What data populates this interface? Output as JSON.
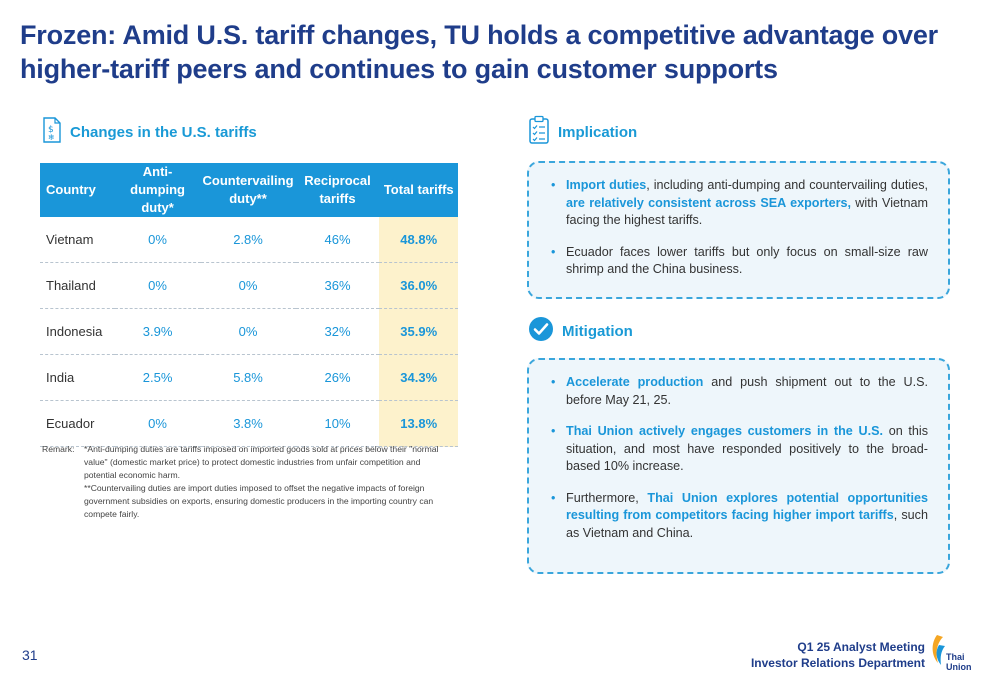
{
  "title": "Frozen: Amid U.S. tariff changes, TU holds a competitive advantage over higher-tariff peers and continues to gain customer supports",
  "left": {
    "heading": "Changes in the U.S. tariffs",
    "icon": "tariff-document-icon",
    "table": {
      "headers": [
        "Country",
        "Anti-dumping duty*",
        "Countervailing duty**",
        "Reciprocal tariffs",
        "Total tariffs"
      ],
      "rows": [
        [
          "Vietnam",
          "0%",
          "2.8%",
          "46%",
          "48.8%"
        ],
        [
          "Thailand",
          "0%",
          "0%",
          "36%",
          "36.0%"
        ],
        [
          "Indonesia",
          "3.9%",
          "0%",
          "32%",
          "35.9%"
        ],
        [
          "India",
          "2.5%",
          "5.8%",
          "26%",
          "34.3%"
        ],
        [
          "Ecuador",
          "0%",
          "3.8%",
          "10%",
          "13.8%"
        ]
      ]
    },
    "remark": {
      "label": "Remark:",
      "line1": "*Anti-dumping duties are tariffs imposed on imported goods sold at prices below their \"normal value\" (domestic market price) to protect domestic industries from unfair competition and potential economic harm.",
      "line2": "**Countervailing duties are import duties imposed to offset the negative impacts of foreign government subsidies on exports, ensuring domestic producers in the importing country can compete fairly."
    }
  },
  "implication": {
    "heading": "Implication",
    "icon": "clipboard-checklist-icon",
    "b1": {
      "bold1": "Import duties",
      "text1": ", including anti-dumping and countervailing duties, ",
      "bold2": "are relatively consistent across SEA exporters,",
      "text2": " with Vietnam facing the highest tariffs."
    },
    "b2": {
      "text": "Ecuador faces lower tariffs but only focus on small-size raw shrimp and the China business."
    }
  },
  "mitigation": {
    "heading": "Mitigation",
    "icon": "check-circle-icon",
    "b1": {
      "bold": "Accelerate production",
      "text": " and push shipment out to the U.S. before May 21, 25."
    },
    "b2": {
      "bold": "Thai Union actively engages customers in the U.S.",
      "text": " on this situation, and most have responded positively to the broad-based 10% increase."
    },
    "b3": {
      "text1": "Furthermore, ",
      "bold": "Thai Union explores potential opportunities resulting from competitors facing higher import tariffs",
      "text2": ", such as Vietnam and China."
    }
  },
  "footer": {
    "page": "31",
    "line1": "Q1 25 Analyst Meeting",
    "line2": "Investor Relations Department",
    "logo_text1": "Thai",
    "logo_text2": "Union"
  },
  "colors": {
    "navy": "#1f3d8a",
    "accent": "#1a96d9",
    "highlight": "#fdf2cc",
    "box_bg": "#eef6fb"
  },
  "bullet": "•"
}
